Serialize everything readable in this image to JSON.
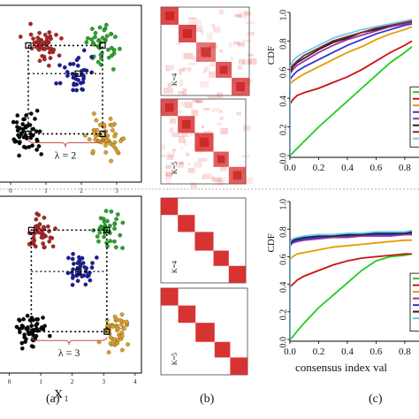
{
  "captions": {
    "a": "(a)",
    "b": "(b)",
    "c": "(c)"
  },
  "chart_data": [
    {
      "type": "scatter",
      "panel": "a-top",
      "lambda_label": "λ = 2",
      "x_ticks": [
        "0",
        "1",
        "2",
        "3"
      ],
      "clusters": [
        {
          "color": "#b22222",
          "center": [
            0.9,
            3.0
          ],
          "n": 45
        },
        {
          "color": "#22aa22",
          "center": [
            2.6,
            3.0
          ],
          "n": 40
        },
        {
          "color": "#1a1aa0",
          "center": [
            1.9,
            2.3
          ],
          "n": 35
        },
        {
          "color": "#000000",
          "center": [
            0.5,
            0.8
          ],
          "n": 50
        },
        {
          "color": "#e0a020",
          "center": [
            2.7,
            0.7
          ],
          "n": 50
        }
      ]
    },
    {
      "type": "scatter",
      "panel": "a-bottom",
      "lambda_label": "λ = 3",
      "x_label": "X",
      "x_label_sub": "1",
      "x_ticks": [
        "0",
        "1",
        "2",
        "3",
        "4"
      ],
      "clusters": [
        {
          "color": "#b22222",
          "center": [
            1.0,
            3.2
          ],
          "n": 40
        },
        {
          "color": "#22aa22",
          "center": [
            3.1,
            3.3
          ],
          "n": 35
        },
        {
          "color": "#1a1aa0",
          "center": [
            2.2,
            2.2
          ],
          "n": 40
        },
        {
          "color": "#000000",
          "center": [
            0.7,
            0.6
          ],
          "n": 50
        },
        {
          "color": "#e0a020",
          "center": [
            3.4,
            0.6
          ],
          "n": 45
        }
      ]
    },
    {
      "type": "heatmap",
      "panel": "b",
      "matrices": [
        {
          "label": "",
          "blocks": [
            0.2,
            0.2,
            0.22,
            0.18,
            0.2
          ]
        },
        {
          "label": "K=4",
          "blocks": [
            0.2,
            0.2,
            0.22,
            0.18,
            0.2
          ]
        },
        {
          "label": "K=5",
          "blocks": [
            0.2,
            0.2,
            0.22,
            0.18,
            0.2
          ]
        },
        {
          "label": "",
          "blocks": [
            0.2,
            0.2,
            0.22,
            0.18,
            0.2
          ]
        },
        {
          "label": "K=4",
          "blocks": [
            0.2,
            0.2,
            0.22,
            0.18,
            0.2
          ]
        },
        {
          "label": "K=5",
          "blocks": [
            0.2,
            0.2,
            0.22,
            0.18,
            0.2
          ]
        }
      ]
    },
    {
      "type": "line",
      "panel": "c-top",
      "ylabel": "CDF",
      "xlim": [
        0,
        0.85
      ],
      "ylim": [
        0,
        1.0
      ],
      "x_ticks": [
        "0.0",
        "0.2",
        "0.4",
        "0.6",
        "0.8"
      ],
      "y_ticks": [
        "0.0",
        "0.2",
        "0.4",
        "0.6",
        "0.8",
        "1.0"
      ],
      "x": [
        0.0,
        0.02,
        0.05,
        0.1,
        0.2,
        0.3,
        0.4,
        0.5,
        0.6,
        0.7,
        0.8,
        0.85
      ],
      "series": [
        {
          "color": "#22cc22",
          "values": [
            0.0,
            0.02,
            0.05,
            0.1,
            0.2,
            0.29,
            0.38,
            0.47,
            0.56,
            0.65,
            0.72,
            0.76
          ]
        },
        {
          "color": "#cc1111",
          "values": [
            0.36,
            0.39,
            0.42,
            0.44,
            0.47,
            0.51,
            0.55,
            0.6,
            0.66,
            0.72,
            0.77,
            0.8
          ]
        },
        {
          "color": "#e89a00",
          "values": [
            0.5,
            0.52,
            0.54,
            0.57,
            0.62,
            0.67,
            0.72,
            0.76,
            0.81,
            0.85,
            0.88,
            0.9
          ]
        },
        {
          "color": "#3333cc",
          "values": [
            0.53,
            0.56,
            0.59,
            0.62,
            0.67,
            0.72,
            0.77,
            0.81,
            0.85,
            0.88,
            0.91,
            0.92
          ]
        },
        {
          "color": "#9933aa",
          "values": [
            0.57,
            0.6,
            0.63,
            0.66,
            0.72,
            0.77,
            0.81,
            0.84,
            0.87,
            0.9,
            0.92,
            0.93
          ]
        },
        {
          "color": "#222222",
          "values": [
            0.58,
            0.62,
            0.65,
            0.68,
            0.74,
            0.79,
            0.82,
            0.86,
            0.88,
            0.91,
            0.93,
            0.94
          ]
        },
        {
          "color": "#8b2222",
          "values": [
            0.6,
            0.63,
            0.66,
            0.7,
            0.75,
            0.8,
            0.83,
            0.86,
            0.89,
            0.91,
            0.93,
            0.94
          ]
        },
        {
          "color": "#66ccee",
          "values": [
            0.62,
            0.66,
            0.69,
            0.72,
            0.77,
            0.82,
            0.85,
            0.88,
            0.9,
            0.92,
            0.94,
            0.95
          ]
        }
      ]
    },
    {
      "type": "line",
      "panel": "c-bottom",
      "ylabel": "CDF",
      "xlabel": "consensus index val",
      "xlim": [
        0,
        0.85
      ],
      "ylim": [
        0,
        1.0
      ],
      "x_ticks": [
        "0.0",
        "0.2",
        "0.4",
        "0.6",
        "0.8"
      ],
      "y_ticks": [
        "0.0",
        "0.2",
        "0.4",
        "0.6",
        "0.8",
        "1.0"
      ],
      "x": [
        0.0,
        0.02,
        0.05,
        0.1,
        0.2,
        0.3,
        0.4,
        0.5,
        0.6,
        0.7,
        0.8,
        0.85
      ],
      "series": [
        {
          "color": "#22cc22",
          "values": [
            0.0,
            0.02,
            0.06,
            0.12,
            0.23,
            0.32,
            0.41,
            0.5,
            0.57,
            0.6,
            0.61,
            0.62
          ]
        },
        {
          "color": "#cc1111",
          "values": [
            0.38,
            0.4,
            0.43,
            0.46,
            0.5,
            0.54,
            0.57,
            0.59,
            0.6,
            0.61,
            0.62,
            0.62
          ]
        },
        {
          "color": "#e89a00",
          "values": [
            0.58,
            0.6,
            0.62,
            0.63,
            0.65,
            0.67,
            0.68,
            0.69,
            0.7,
            0.71,
            0.72,
            0.72
          ]
        },
        {
          "color": "#9933aa",
          "values": [
            0.68,
            0.7,
            0.71,
            0.72,
            0.73,
            0.74,
            0.74,
            0.75,
            0.75,
            0.75,
            0.76,
            0.76
          ]
        },
        {
          "color": "#3333cc",
          "values": [
            0.69,
            0.71,
            0.72,
            0.73,
            0.74,
            0.75,
            0.75,
            0.76,
            0.76,
            0.76,
            0.77,
            0.77
          ]
        },
        {
          "color": "#222222",
          "values": [
            0.7,
            0.72,
            0.73,
            0.74,
            0.75,
            0.75,
            0.76,
            0.76,
            0.77,
            0.77,
            0.77,
            0.78
          ]
        },
        {
          "color": "#66ccee",
          "values": [
            0.71,
            0.73,
            0.74,
            0.75,
            0.76,
            0.76,
            0.77,
            0.77,
            0.78,
            0.78,
            0.78,
            0.79
          ]
        }
      ]
    }
  ]
}
